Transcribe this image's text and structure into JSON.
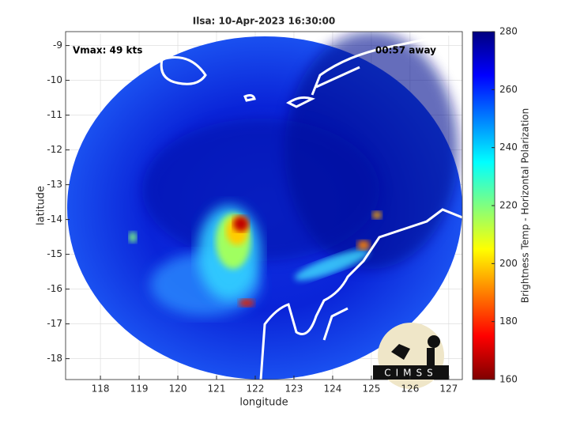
{
  "chart_data": {
    "type": "image",
    "title": "Ilsa: 10-Apr-2023 16:30:00",
    "xlabel": "longitude",
    "ylabel": "latitude",
    "annotations": [
      "Vmax: 49 kts",
      "00:57 away"
    ],
    "xlim": [
      117.1,
      127.35
    ],
    "xticks": [
      118,
      119,
      120,
      121,
      122,
      123,
      124,
      125,
      126,
      127
    ],
    "ylim": [
      -18.6,
      -8.6
    ],
    "yticks": [
      -18,
      -17,
      -16,
      -15,
      -14,
      -13,
      -12,
      -11,
      -10,
      -9
    ],
    "grid": true,
    "colorbar": {
      "label": "Brightness Temp - Horizontal Polarization",
      "lim": [
        160,
        280
      ],
      "ticks": [
        160,
        180,
        200,
        220,
        240,
        260,
        280
      ],
      "colormap": "jet"
    },
    "logo": "CIMSS"
  }
}
